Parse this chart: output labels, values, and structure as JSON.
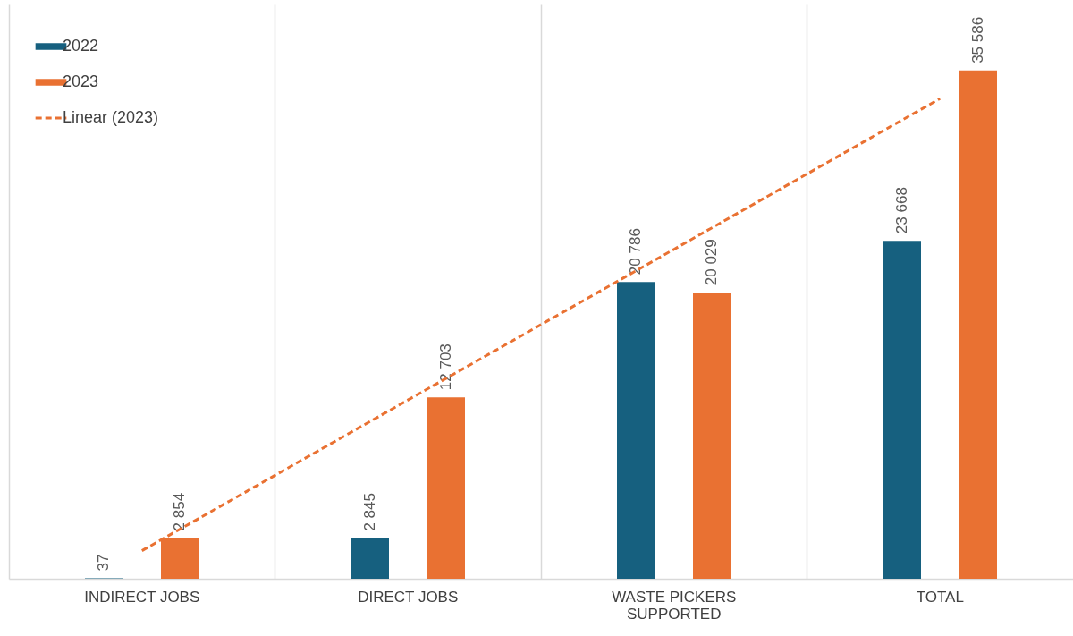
{
  "chart_data": {
    "type": "bar",
    "categories": [
      "INDIRECT JOBS",
      "DIRECT JOBS",
      "WASTE PICKERS SUPPORTED",
      "TOTAL"
    ],
    "series": [
      {
        "name": "2022",
        "color": "#16607f",
        "values": [
          37,
          2845,
          20786,
          23668
        ],
        "value_labels": [
          "37",
          "2 845",
          "20 786",
          "23 668"
        ]
      },
      {
        "name": "2023",
        "color": "#e97132",
        "values": [
          2854,
          12703,
          20029,
          35586
        ],
        "value_labels": [
          "2 854",
          "12 703",
          "20 029",
          "35 586"
        ]
      },
      {
        "name": "Linear (2023)",
        "type": "line",
        "color": "#e97132",
        "line_style": "dashed",
        "values": [
          1965,
          12517,
          23069,
          33621
        ]
      }
    ],
    "legend": "top left",
    "grid": "x"
  }
}
